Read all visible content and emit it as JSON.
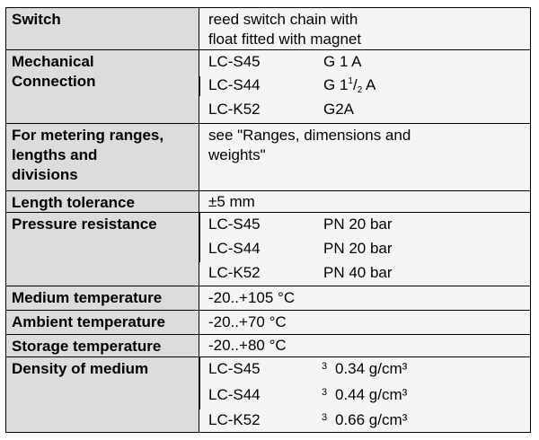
{
  "rows": [
    {
      "label": "Switch",
      "value": "reed switch chain with\nfloat fitted with magnet"
    },
    {
      "label": "Mechanical\nConnection",
      "items": [
        {
          "model": "LC-S45",
          "spec": "G 1 A"
        },
        {
          "model": "LC-S44",
          "spec_main": "G 1",
          "spec_sup": "1",
          "spec_slash": "/",
          "spec_sub": "2",
          "spec_end": " A"
        },
        {
          "model": "LC-K52",
          "spec": "G2A"
        }
      ]
    },
    {
      "label": "For metering ranges,\nlengths and\ndivisions",
      "value": "see \"Ranges, dimensions and\nweights\""
    },
    {
      "label": "Length tolerance",
      "value": "±5 mm"
    },
    {
      "label": "Pressure resistance",
      "items": [
        {
          "model": "LC-S45",
          "spec": "PN 20 bar"
        },
        {
          "model": "LC-S44",
          "spec": "PN 20 bar"
        },
        {
          "model": "LC-K52",
          "spec": "PN 40 bar"
        }
      ]
    },
    {
      "label": "Medium temperature",
      "value": "-20..+105 °C"
    },
    {
      "label": "Ambient temperature",
      "value": "-20..+70 °C"
    },
    {
      "label": "Storage temperature",
      "value": "-20..+80 °C"
    },
    {
      "label": "Density of medium",
      "items": [
        {
          "model": "LC-S45",
          "note": "3",
          "spec": "0.34 g/cm³"
        },
        {
          "model": "LC-S44",
          "note": "3",
          "spec": "0.44 g/cm³"
        },
        {
          "model": "LC-K52",
          "note": "3",
          "spec": "0.66 g/cm³"
        }
      ]
    }
  ]
}
